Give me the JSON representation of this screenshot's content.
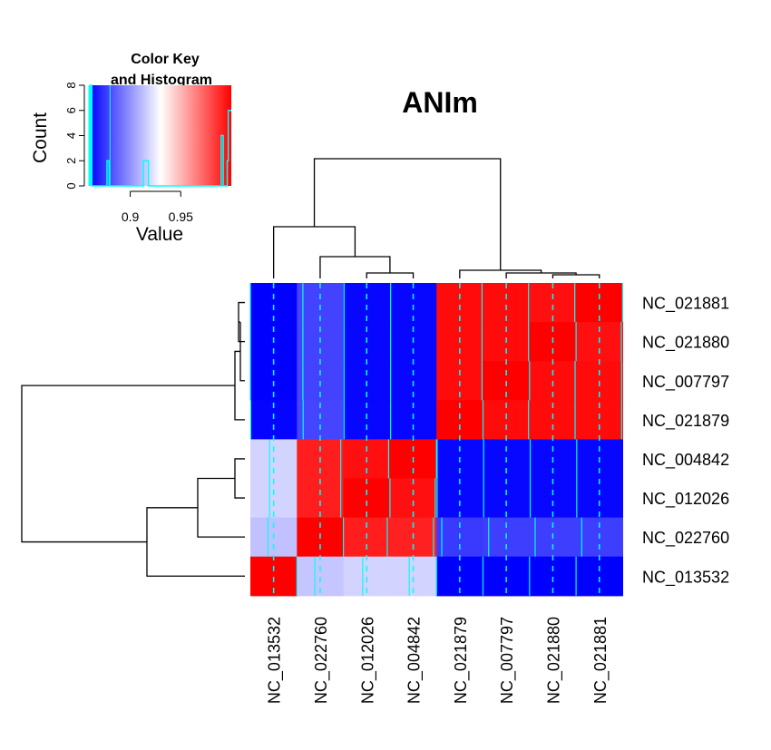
{
  "chart_data": {
    "type": "heatmap",
    "title": "ANIm",
    "rows": [
      "NC_021881",
      "NC_021880",
      "NC_007797",
      "NC_021879",
      "NC_004842",
      "NC_012026",
      "NC_022760",
      "NC_013532"
    ],
    "columns": [
      "NC_013532",
      "NC_022760",
      "NC_012026",
      "NC_004842",
      "NC_021879",
      "NC_007797",
      "NC_021880",
      "NC_021881"
    ],
    "values": [
      [
        0.86,
        0.878,
        0.862,
        0.862,
        0.997,
        0.997,
        0.996,
        1.0
      ],
      [
        0.86,
        0.878,
        0.862,
        0.862,
        0.997,
        0.997,
        1.0,
        0.996
      ],
      [
        0.86,
        0.878,
        0.862,
        0.862,
        0.997,
        1.0,
        0.997,
        0.997
      ],
      [
        0.861,
        0.879,
        0.862,
        0.862,
        1.0,
        0.997,
        0.997,
        0.997
      ],
      [
        0.918,
        0.992,
        0.996,
        1.0,
        0.862,
        0.862,
        0.862,
        0.862
      ],
      [
        0.918,
        0.992,
        1.0,
        0.996,
        0.862,
        0.862,
        0.862,
        0.862
      ],
      [
        0.913,
        1.0,
        0.992,
        0.991,
        0.876,
        0.877,
        0.877,
        0.877
      ],
      [
        1.0,
        0.914,
        0.918,
        0.918,
        0.86,
        0.86,
        0.86,
        0.86
      ]
    ],
    "color_scale": {
      "low": "#0000ff",
      "mid": "#ffffff",
      "high": "#ff0000",
      "range": [
        0.86,
        1.0
      ],
      "mid_value": 0.93
    },
    "trace_color": "#00ffff",
    "color_key": {
      "title_line1": "Color Key",
      "title_line2": "and Histogram",
      "ylabel": "Count",
      "xlabel": "Value",
      "x_ticks": [
        "0.9",
        "0.95"
      ],
      "y_ticks": [
        "0",
        "2",
        "4",
        "6",
        "8"
      ],
      "xlim": [
        0.86,
        1.0
      ],
      "ylim": [
        0,
        8
      ]
    }
  }
}
